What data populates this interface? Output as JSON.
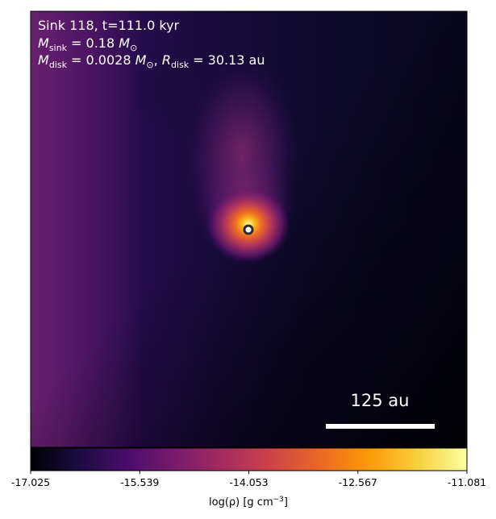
{
  "chart_data": {
    "type": "heatmap",
    "title": "",
    "annotations": {
      "sink_line": "Sink 118, t=111.0 kyr",
      "msink": {
        "symbol": "M",
        "sub": "sink",
        "value": " = 0.18 ",
        "unit": "M",
        "unit_sub": "⊙"
      },
      "mdisk": {
        "symbol": "M",
        "sub": "disk",
        "value": " = 0.0028 ",
        "unit": "M",
        "unit_sub": "⊙"
      },
      "rdisk": {
        "symbol": "R",
        "sub": "disk",
        "value": " = 30.13 au"
      },
      "separator": ", "
    },
    "scale_bar": {
      "label": "125 au",
      "length_au": 125
    },
    "sink_marker": {
      "x_frac": 0.5,
      "y_frac": 0.5
    },
    "colormap": "inferno",
    "colorbar": {
      "label_main": "log(ρ) [g cm",
      "label_exp": "−3",
      "label_close": "]",
      "ticks": [
        "-17.025",
        "-15.539",
        "-14.053",
        "-12.567",
        "-11.081"
      ],
      "range": [
        -17.025,
        -11.081
      ],
      "colors": [
        "#000004",
        "#1b0c41",
        "#4a0c6b",
        "#781c6d",
        "#a52c60",
        "#cf4446",
        "#ed6925",
        "#fb9b06",
        "#f7d13d",
        "#fcffa4"
      ]
    },
    "xlabel": "",
    "ylabel": ""
  }
}
